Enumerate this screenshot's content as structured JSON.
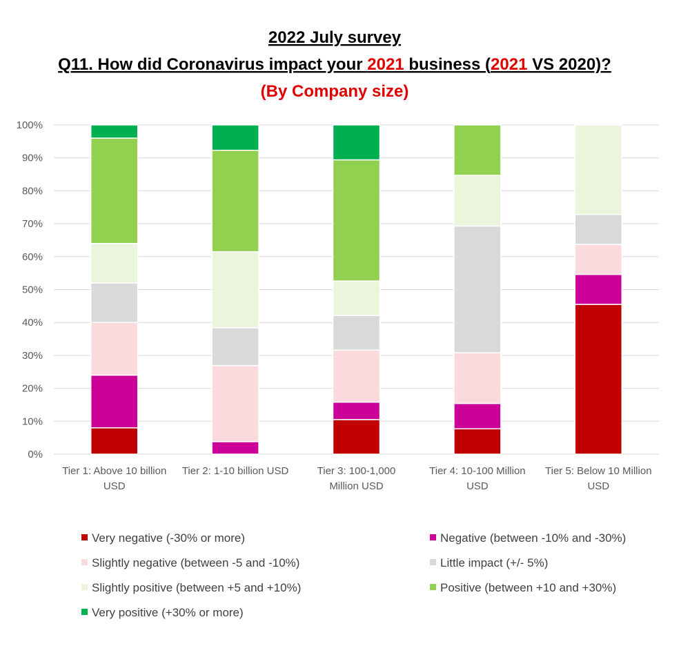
{
  "title": {
    "line1": "2022 July survey",
    "line2_parts": [
      {
        "text": "Q11. How did Coronavirus impact your ",
        "color": "#000000"
      },
      {
        "text": "2021",
        "color": "#e00000"
      },
      {
        "text": " business (",
        "color": "#000000"
      },
      {
        "text": "2021",
        "color": "#e00000"
      },
      {
        "text": " VS 2020)?",
        "color": "#000000"
      }
    ],
    "line3": "(By Company size)",
    "line3_color": "#e00000"
  },
  "chart_data": {
    "type": "bar",
    "stacked": true,
    "percent": true,
    "categories": [
      [
        "Tier 1: Above 10 billion",
        "USD"
      ],
      [
        "Tier 2: 1-10 billion USD"
      ],
      [
        "Tier 3: 100-1,000",
        "Million USD"
      ],
      [
        "Tier 4: 10-100 Million",
        "USD"
      ],
      [
        "Tier 5: Below 10 Million",
        "USD"
      ]
    ],
    "ylim": [
      0,
      100
    ],
    "yticks": [
      "0%",
      "10%",
      "20%",
      "30%",
      "40%",
      "50%",
      "60%",
      "70%",
      "80%",
      "90%",
      "100%"
    ],
    "grid": true,
    "legend_position": "bottom",
    "series": [
      {
        "name": "Very negative (-30% or more)",
        "color": "#c00000",
        "values": [
          8,
          0,
          10.5,
          7.7,
          45.5
        ]
      },
      {
        "name": "Negative (between -10% and -30%)",
        "color": "#cc0099",
        "values": [
          16,
          3.8,
          5.3,
          7.7,
          9.1
        ]
      },
      {
        "name": "Slightly negative (between -5 and -10%)",
        "color": "#fadadd",
        "values": [
          16,
          23.1,
          15.8,
          15.4,
          9.1
        ]
      },
      {
        "name": "Little impact (+/- 5%)",
        "color": "#d9d9d9",
        "values": [
          12,
          11.5,
          10.5,
          38.5,
          9.1
        ]
      },
      {
        "name": "Slightly positive (between +5 and +10%)",
        "color": "#ebf5dc",
        "values": [
          12,
          23.1,
          10.5,
          15.4,
          27.2
        ]
      },
      {
        "name": "Positive (between +10 and +30%)",
        "color": "#92d050",
        "values": [
          32,
          30.8,
          36.8,
          15.3,
          0
        ]
      },
      {
        "name": "Very positive (+30% or more)",
        "color": "#00b050",
        "values": [
          4,
          7.7,
          10.6,
          0,
          0
        ]
      }
    ]
  }
}
